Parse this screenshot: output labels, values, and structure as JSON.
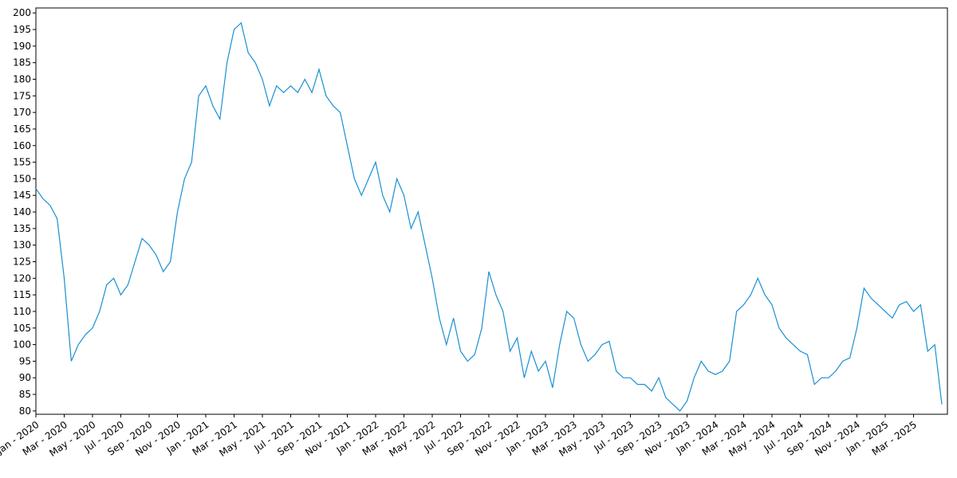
{
  "chart_data": {
    "type": "line",
    "categories": [
      "Jan - 2020",
      null,
      null,
      null,
      "Mar - 2020",
      null,
      null,
      null,
      "May - 2020",
      null,
      null,
      null,
      "Jul - 2020",
      null,
      null,
      null,
      "Sep - 2020",
      null,
      null,
      null,
      "Nov - 2020",
      null,
      null,
      null,
      "Jan - 2021",
      null,
      null,
      null,
      "Mar - 2021",
      null,
      null,
      null,
      "May - 2021",
      null,
      null,
      null,
      "Jul - 2021",
      null,
      null,
      null,
      "Sep - 2021",
      null,
      null,
      null,
      "Nov - 2021",
      null,
      null,
      null,
      "Jan - 2022",
      null,
      null,
      null,
      "Mar - 2022",
      null,
      null,
      null,
      "May - 2022",
      null,
      null,
      null,
      "Jul - 2022",
      null,
      null,
      null,
      "Sep - 2022",
      null,
      null,
      null,
      "Nov - 2022",
      null,
      null,
      null,
      "Jan - 2023",
      null,
      null,
      null,
      "Mar - 2023",
      null,
      null,
      null,
      "May - 2023",
      null,
      null,
      null,
      "Jul - 2023",
      null,
      null,
      null,
      "Sep - 2023",
      null,
      null,
      null,
      "Nov - 2023",
      null,
      null,
      null,
      "Jan - 2024",
      null,
      null,
      null,
      "Mar - 2024",
      null,
      null,
      null,
      "May - 2024",
      null,
      null,
      null,
      "Jul - 2024",
      null,
      null,
      null,
      "Sep - 2024",
      null,
      null,
      null,
      "Nov - 2024",
      null,
      null,
      null,
      "Jan - 2025",
      null,
      null,
      null,
      "Mar - 2025",
      null,
      null,
      null,
      null
    ],
    "values": [
      147,
      144,
      142,
      138,
      120,
      95,
      100,
      103,
      105,
      110,
      118,
      120,
      115,
      118,
      125,
      132,
      130,
      127,
      122,
      125,
      140,
      150,
      155,
      175,
      178,
      172,
      168,
      185,
      195,
      197,
      188,
      185,
      180,
      172,
      178,
      176,
      178,
      176,
      180,
      176,
      183,
      175,
      172,
      170,
      160,
      150,
      145,
      150,
      155,
      145,
      140,
      150,
      145,
      135,
      140,
      130,
      120,
      108,
      100,
      108,
      98,
      95,
      97,
      105,
      122,
      115,
      110,
      98,
      102,
      90,
      98,
      92,
      95,
      87,
      100,
      110,
      108,
      100,
      95,
      97,
      100,
      101,
      92,
      90,
      90,
      88,
      88,
      86,
      90,
      84,
      82,
      80,
      83,
      90,
      95,
      92,
      91,
      92,
      95,
      110,
      112,
      115,
      120,
      115,
      112,
      105,
      102,
      100,
      98,
      97,
      88,
      90,
      90,
      92,
      95,
      96,
      105,
      117,
      114,
      112,
      110,
      108,
      112,
      113,
      110,
      112,
      98,
      100,
      82
    ],
    "color": "#1a8fd3",
    "ylim": [
      79,
      201.5
    ],
    "yticks": [
      80,
      85,
      90,
      95,
      100,
      105,
      110,
      115,
      120,
      125,
      130,
      135,
      140,
      145,
      150,
      155,
      160,
      165,
      170,
      175,
      180,
      185,
      190,
      195,
      200
    ]
  }
}
